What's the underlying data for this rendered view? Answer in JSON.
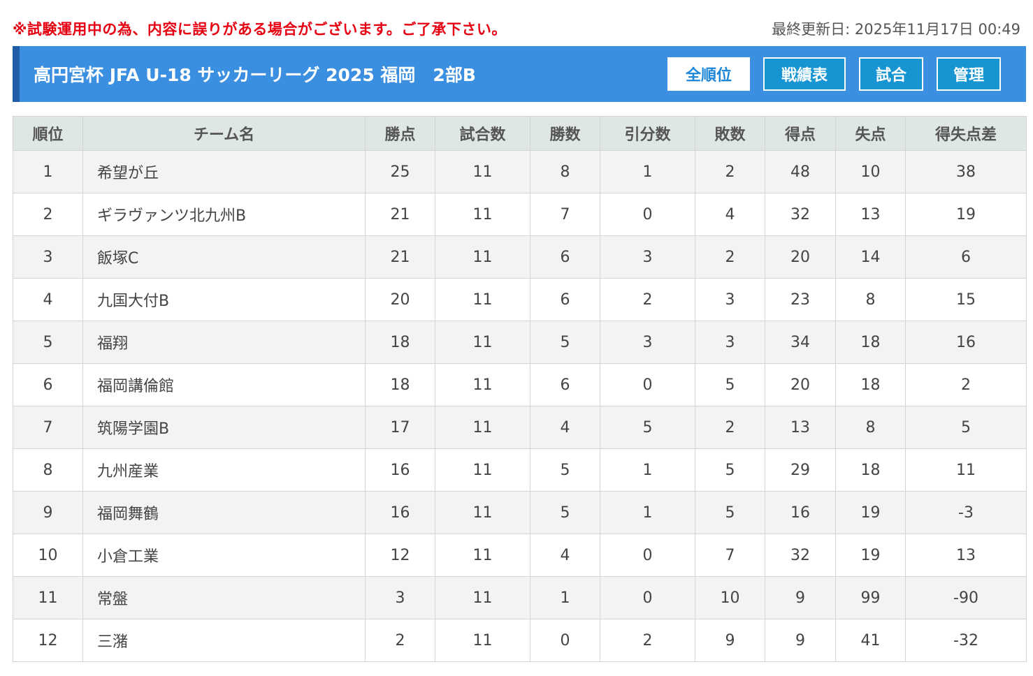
{
  "notice": "※試験運用中の為、内容に誤りがある場合がございます。ご了承下さい。",
  "last_updated": "最終更新日: 2025年11月17日 00:49",
  "header": {
    "title": "高円宮杯 JFA U-18 サッカーリーグ 2025 福岡　2部B",
    "nav": [
      {
        "label": "全順位",
        "active": true
      },
      {
        "label": "戦績表",
        "active": false
      },
      {
        "label": "試合",
        "active": false
      },
      {
        "label": "管理",
        "active": false
      }
    ]
  },
  "colors": {
    "notice": "#e60012",
    "header_bg": "#3b8fe0",
    "header_accent": "#1f5fa8",
    "nav_alt": "#1795d2"
  },
  "table": {
    "columns": [
      "順位",
      "チーム名",
      "勝点",
      "試合数",
      "勝数",
      "引分数",
      "敗数",
      "得点",
      "失点",
      "得失点差"
    ],
    "rows": [
      [
        "1",
        "希望が丘",
        "25",
        "11",
        "8",
        "1",
        "2",
        "48",
        "10",
        "38"
      ],
      [
        "2",
        "ギラヴァンツ北九州B",
        "21",
        "11",
        "7",
        "0",
        "4",
        "32",
        "13",
        "19"
      ],
      [
        "3",
        "飯塚C",
        "21",
        "11",
        "6",
        "3",
        "2",
        "20",
        "14",
        "6"
      ],
      [
        "4",
        "九国大付B",
        "20",
        "11",
        "6",
        "2",
        "3",
        "23",
        "8",
        "15"
      ],
      [
        "5",
        "福翔",
        "18",
        "11",
        "5",
        "3",
        "3",
        "34",
        "18",
        "16"
      ],
      [
        "6",
        "福岡講倫館",
        "18",
        "11",
        "6",
        "0",
        "5",
        "20",
        "18",
        "2"
      ],
      [
        "7",
        "筑陽学園B",
        "17",
        "11",
        "4",
        "5",
        "2",
        "13",
        "8",
        "5"
      ],
      [
        "8",
        "九州産業",
        "16",
        "11",
        "5",
        "1",
        "5",
        "29",
        "18",
        "11"
      ],
      [
        "9",
        "福岡舞鶴",
        "16",
        "11",
        "5",
        "1",
        "5",
        "16",
        "19",
        "-3"
      ],
      [
        "10",
        "小倉工業",
        "12",
        "11",
        "4",
        "0",
        "7",
        "32",
        "19",
        "13"
      ],
      [
        "11",
        "常盤",
        "3",
        "11",
        "1",
        "0",
        "10",
        "9",
        "99",
        "-90"
      ],
      [
        "12",
        "三潴",
        "2",
        "11",
        "0",
        "2",
        "9",
        "9",
        "41",
        "-32"
      ]
    ]
  }
}
